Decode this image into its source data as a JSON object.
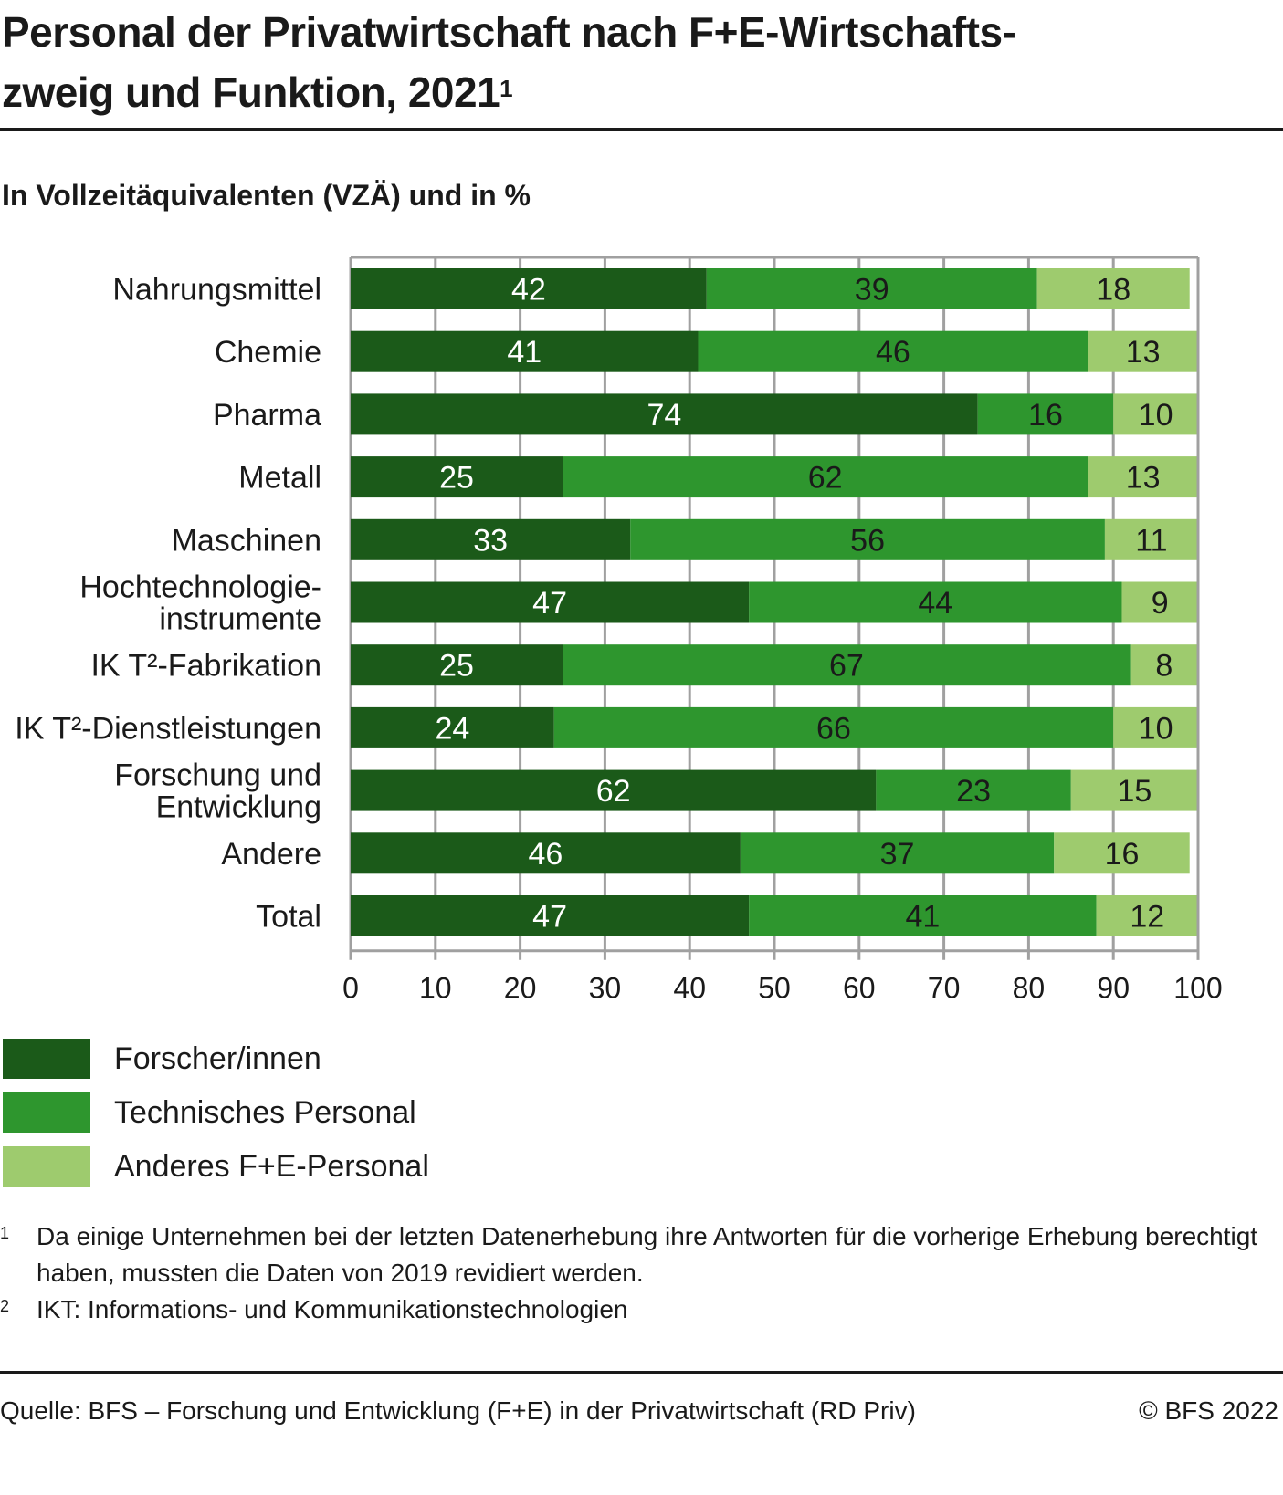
{
  "header": {
    "title_line1": "Personal der Privatwirtschaft nach F+E-Wirtschafts-",
    "title_line2": "zweig und Funktion, 2021",
    "title_footnote_mark": "1",
    "subtitle": "In Vollzeitäquivalenten (VZÄ) und in %"
  },
  "colors": {
    "forscher": "#1b5a19",
    "technisch": "#2e962e",
    "anderes": "#9ecb6e",
    "grid": "#a0a0a0",
    "label_dark_bg": "#ffffff",
    "label_light_bg": "#1a1a1a"
  },
  "chart_data": {
    "type": "bar",
    "orientation": "horizontal",
    "stacked": true,
    "title": "Personal der Privatwirtschaft nach F+E-Wirtschaftszweig und Funktion, 2021",
    "subtitle": "In Vollzeitäquivalenten (VZÄ) und in %",
    "xlabel": "",
    "ylabel": "",
    "xlim": [
      0,
      100
    ],
    "xticks": [
      0,
      10,
      20,
      30,
      40,
      50,
      60,
      70,
      80,
      90,
      100
    ],
    "grid": true,
    "legend_position": "bottom-left",
    "categories": [
      [
        "Nahrungsmittel"
      ],
      [
        "Chemie"
      ],
      [
        "Pharma"
      ],
      [
        "Metall"
      ],
      [
        "Maschinen"
      ],
      [
        "Hochtechnologie-",
        "instrumente"
      ],
      [
        "IK T²-Fabrikation"
      ],
      [
        "IK T²-Dienstleistungen"
      ],
      [
        "Forschung und",
        "Entwicklung"
      ],
      [
        "Andere"
      ],
      [
        "Total"
      ]
    ],
    "series": [
      {
        "name": "Forscher/innen",
        "color": "#1b5a19",
        "values": [
          42,
          41,
          74,
          25,
          33,
          47,
          25,
          24,
          62,
          46,
          47
        ]
      },
      {
        "name": "Technisches Personal",
        "color": "#2e962e",
        "values": [
          39,
          46,
          16,
          62,
          56,
          44,
          67,
          66,
          23,
          37,
          41
        ]
      },
      {
        "name": "Anderes F+E-Personal",
        "color": "#9ecb6e",
        "values": [
          18,
          13,
          10,
          13,
          11,
          9,
          8,
          10,
          15,
          16,
          12
        ]
      }
    ]
  },
  "legend": [
    {
      "label": "Forscher/innen",
      "color": "#1b5a19"
    },
    {
      "label": "Technisches Personal",
      "color": "#2e962e"
    },
    {
      "label": "Anderes F+E-Personal",
      "color": "#9ecb6e"
    }
  ],
  "footnotes": [
    {
      "mark": "1",
      "text": "Da einige Unternehmen bei der letzten Datenerhebung ihre Antworten für die vorherige Erhebung berechtigt haben, mussten die Daten von 2019 revidiert werden."
    },
    {
      "mark": "2",
      "text": "IKT: Informations- und Kommunikationstechnologien"
    }
  ],
  "source": {
    "text": "Quelle: BFS – Forschung und Entwicklung (F+E) in der Privatwirtschaft (RD Priv)",
    "copyright": "© BFS 2022"
  }
}
